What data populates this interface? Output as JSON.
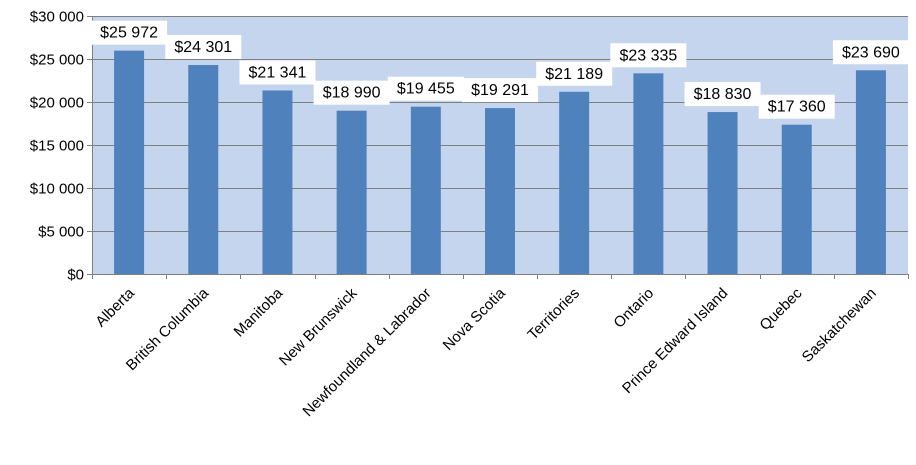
{
  "chart_data": {
    "type": "bar",
    "categories": [
      "Alberta",
      "British Columbia",
      "Manitoba",
      "New Brunswick",
      "Newfoundland & Labrador",
      "Nova Scotia",
      "Territories",
      "Ontario",
      "Prince Edward Island",
      "Quebec",
      "Saskatchewan"
    ],
    "values": [
      25972,
      24301,
      21341,
      18990,
      19455,
      19291,
      21189,
      23335,
      18830,
      17360,
      23690
    ],
    "data_labels": [
      "$25 972",
      "$24 301",
      "$21 341",
      "$18 990",
      "$19 455",
      "$19 291",
      "$21 189",
      "$23 335",
      "$18 830",
      "$17 360",
      "$23 690"
    ],
    "y_ticks": [
      0,
      5000,
      10000,
      15000,
      20000,
      25000,
      30000
    ],
    "y_tick_labels": [
      "$0",
      "$5 000",
      "$10 000",
      "$15 000",
      "$20 000",
      "$25 000",
      "$30 000"
    ],
    "ylim": [
      0,
      30000
    ],
    "grid": true,
    "legend": "none",
    "colors": {
      "bar": "#4f81bd",
      "plot_background": "#c5d5ee",
      "gridline": "#7f7f7f",
      "axis": "#7f7f7f",
      "label_box": "#ffffff",
      "text": "#000000"
    }
  }
}
